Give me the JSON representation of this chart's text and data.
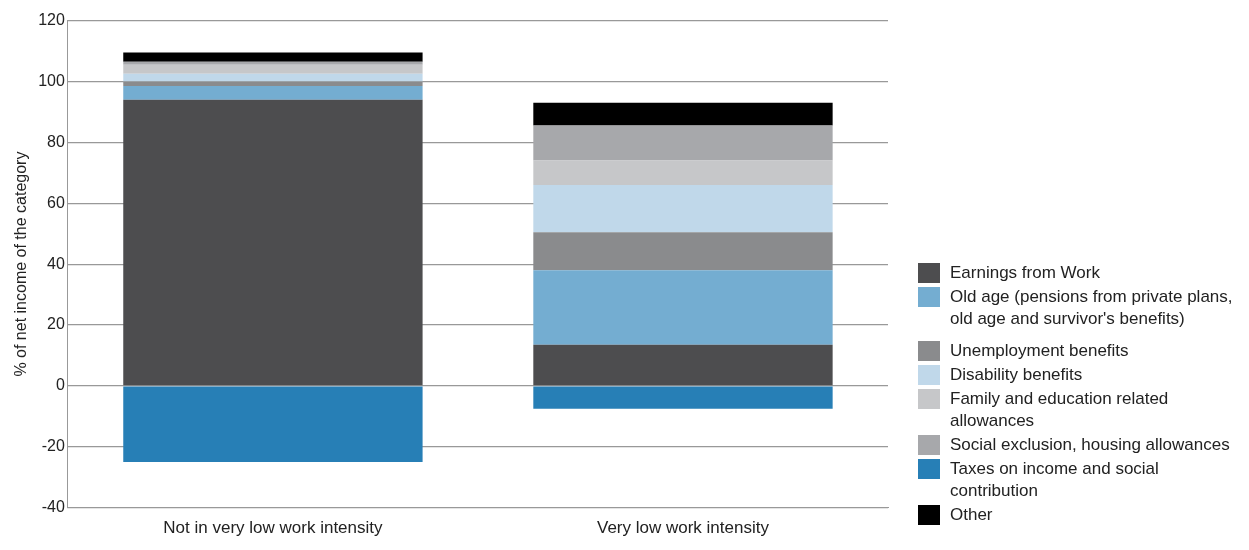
{
  "chart_data": {
    "type": "bar",
    "stacked": true,
    "ylabel": "% of net income of the category",
    "categories": [
      "Not in very low work intensity",
      "Very low work intensity"
    ],
    "ylim": [
      -40,
      120
    ],
    "yticks": [
      -40,
      -20,
      0,
      20,
      40,
      60,
      80,
      100,
      120
    ],
    "grid": "y",
    "legend": "right",
    "series": [
      {
        "name": "Earnings from Work",
        "color": "#4d4d4f",
        "values": [
          94,
          13.5
        ]
      },
      {
        "name": "Old age (pensions from private plans, old age and survivor's benefits)",
        "color": "#74add1",
        "values": [
          4.5,
          24.5
        ]
      },
      {
        "name": "Unemployment benefits",
        "color": "#8a8b8d",
        "values": [
          1.5,
          12.5
        ]
      },
      {
        "name": "Disability benefits",
        "color": "#c0d8ea",
        "values": [
          2.5,
          15.5
        ]
      },
      {
        "name": "Family and education related allowances",
        "color": "#c6c7c9",
        "values": [
          3,
          8
        ]
      },
      {
        "name": "Social exclusion, housing allowances",
        "color": "#a7a8ab",
        "values": [
          1,
          11.5
        ]
      },
      {
        "name": "Taxes on income and social contribution",
        "color": "#277fb6",
        "values": [
          -25,
          -7.5
        ]
      },
      {
        "name": "Other",
        "color": "#000000",
        "values": [
          3,
          7.5
        ]
      }
    ]
  }
}
